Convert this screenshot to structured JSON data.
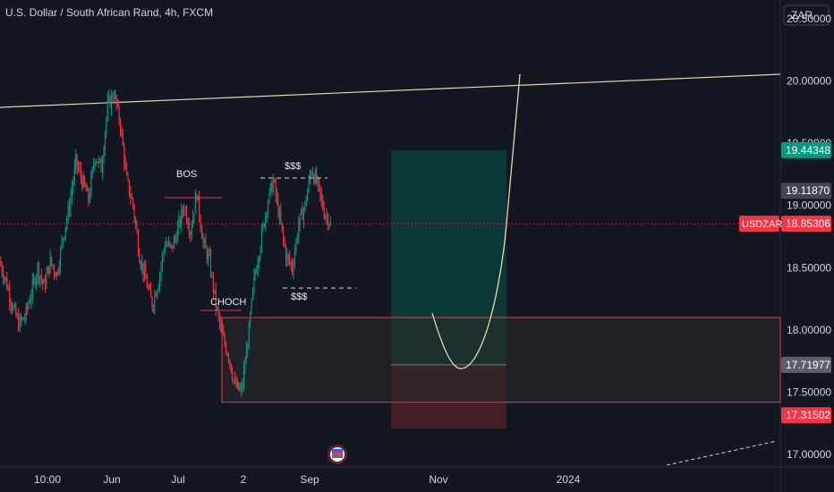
{
  "header": {
    "title": "U.S. Dollar / South African Rand, 4h, FXCM"
  },
  "currency_button": {
    "label": "ZAR"
  },
  "chart_data": {
    "type": "candlestick",
    "ylim": [
      16.9,
      20.65
    ],
    "y_ticks": [
      "20.50000",
      "20.00000",
      "19.50000",
      "19.00000",
      "18.50000",
      "18.00000",
      "17.50000",
      "17.00000"
    ],
    "y_tick_values": [
      20.5,
      20.0,
      19.5,
      19.0,
      18.5,
      18.0,
      17.5,
      17.0
    ],
    "x_ticks": [
      "10:00",
      "Jun",
      "Jul",
      "2",
      "Sep",
      "Nov",
      "2024"
    ],
    "price_labels": [
      {
        "text": "19.44348",
        "value": 19.44348,
        "color": "#089981"
      },
      {
        "text": "19.11870",
        "value": 19.1187,
        "color": "#434651"
      },
      {
        "text": "18.85306",
        "value": 18.85306,
        "color": "#f23645",
        "tag": "USDZAR"
      },
      {
        "text": "17.71977",
        "value": 17.71977,
        "color": "#5d606b"
      },
      {
        "text": "17.31502",
        "value": 17.31502,
        "color": "#f23645"
      }
    ],
    "annotations": {
      "bos": "BOS",
      "choch": "CHOCH",
      "liq_top": "$$$",
      "liq_bottom": "$$$"
    },
    "position": {
      "entry": 17.71977,
      "target": 19.44348,
      "stop": 17.31502
    },
    "demand_zone": {
      "top": 18.1,
      "bottom": 17.42
    },
    "current_price": 18.85306,
    "series_path_y": [
      18.55,
      18.4,
      18.2,
      18.05,
      18.1,
      18.3,
      18.5,
      18.35,
      18.55,
      18.45,
      18.75,
      19.0,
      19.35,
      19.2,
      19.05,
      19.4,
      19.3,
      19.8,
      19.9,
      19.65,
      19.2,
      19.0,
      18.6,
      18.4,
      18.2,
      18.4,
      18.7,
      18.65,
      18.8,
      19.0,
      18.8,
      19.1,
      18.7,
      18.55,
      18.2,
      17.95,
      17.8,
      17.55,
      17.5,
      17.9,
      18.4,
      18.7,
      19.0,
      19.2,
      18.9,
      18.6,
      18.5,
      18.85,
      19.0,
      19.3,
      19.15,
      18.95,
      18.86
    ],
    "colors": {
      "up": "#089981",
      "down": "#f23645",
      "trendline": "#e8d9a8"
    }
  }
}
